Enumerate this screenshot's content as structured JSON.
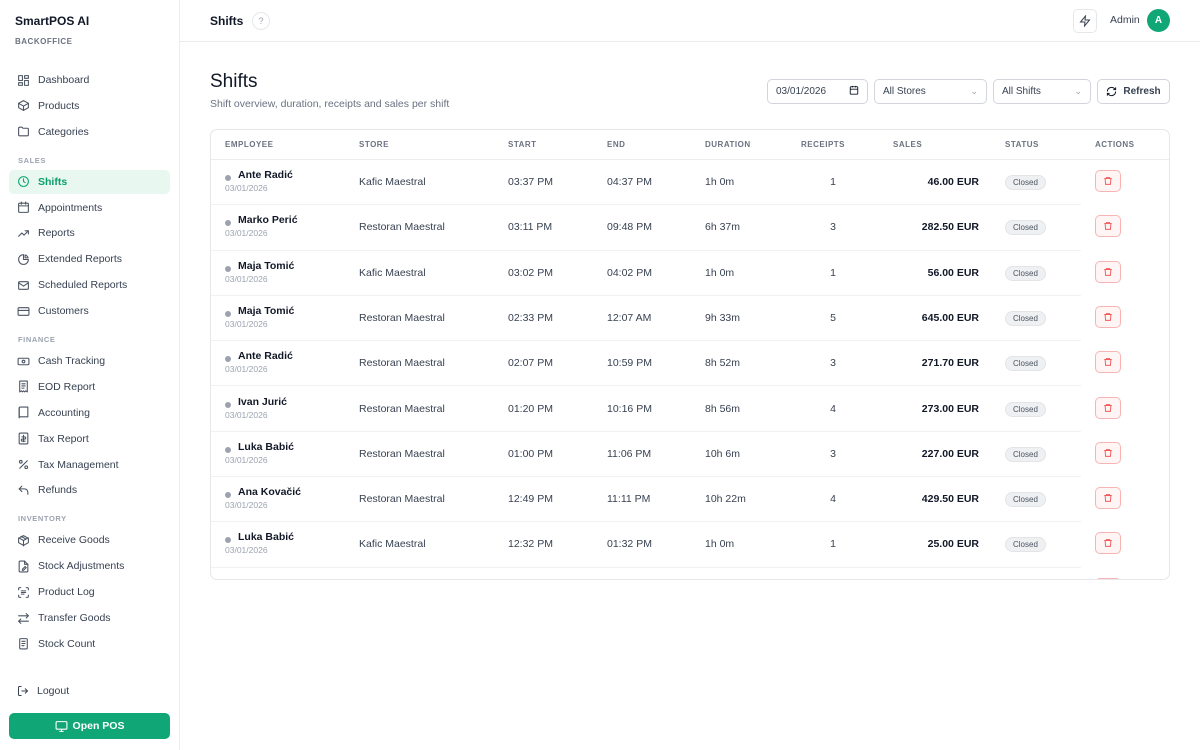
{
  "brand": {
    "name": "SmartPOS AI",
    "sub": "BACKOFFICE"
  },
  "sidebar": {
    "items": [
      {
        "label": "Dashboard",
        "icon": "dashboard-icon"
      },
      {
        "label": "Products",
        "icon": "box-icon"
      },
      {
        "label": "Categories",
        "icon": "folder-icon"
      }
    ],
    "sales_label": "SALES",
    "sales_items": [
      {
        "label": "Shifts",
        "icon": "clock-icon",
        "active": true
      },
      {
        "label": "Appointments",
        "icon": "calendar-icon"
      },
      {
        "label": "Reports",
        "icon": "trend-icon"
      },
      {
        "label": "Extended Reports",
        "icon": "pie-icon"
      },
      {
        "label": "Scheduled Reports",
        "icon": "mail-icon"
      },
      {
        "label": "Customers",
        "icon": "card-icon"
      }
    ],
    "finance_label": "FINANCE",
    "finance_items": [
      {
        "label": "Cash Tracking",
        "icon": "cash-icon"
      },
      {
        "label": "EOD Report",
        "icon": "receipt-icon"
      },
      {
        "label": "Accounting",
        "icon": "book-icon"
      },
      {
        "label": "Tax Report",
        "icon": "tax-doc-icon"
      },
      {
        "label": "Tax Management",
        "icon": "percent-icon"
      },
      {
        "label": "Refunds",
        "icon": "undo-icon"
      }
    ],
    "inventory_label": "INVENTORY",
    "inventory_items": [
      {
        "label": "Receive Goods",
        "icon": "package-icon"
      },
      {
        "label": "Stock Adjustments",
        "icon": "file-edit-icon"
      },
      {
        "label": "Product Log",
        "icon": "scan-icon"
      },
      {
        "label": "Transfer Goods",
        "icon": "swap-icon"
      },
      {
        "label": "Stock Count",
        "icon": "clipboard-icon"
      }
    ],
    "logout": "Logout",
    "open_pos": "Open POS"
  },
  "topbar": {
    "title": "Shifts",
    "help": "?",
    "user": "Admin",
    "avatar": "A"
  },
  "main": {
    "title": "Shifts",
    "subtitle": "Shift overview, duration, receipts and sales per shift",
    "date_value": "03/01/2026",
    "store_filter": "All Stores",
    "shift_filter": "All Shifts",
    "refresh": "Refresh"
  },
  "table": {
    "headers": [
      "EMPLOYEE",
      "STORE",
      "START",
      "END",
      "DURATION",
      "RECEIPTS",
      "SALES",
      "STATUS",
      "ACTIONS"
    ],
    "rows": [
      {
        "employee": "Ante Radić",
        "date": "03/01/2026",
        "store": "Kafic Maestral",
        "start": "03:37 PM",
        "end": "04:37 PM",
        "duration": "1h 0m",
        "receipts": "1",
        "sales": "46.00 EUR",
        "status": "Closed"
      },
      {
        "employee": "Marko Perić",
        "date": "03/01/2026",
        "store": "Restoran Maestral",
        "start": "03:11 PM",
        "end": "09:48 PM",
        "duration": "6h 37m",
        "receipts": "3",
        "sales": "282.50 EUR",
        "status": "Closed"
      },
      {
        "employee": "Maja Tomić",
        "date": "03/01/2026",
        "store": "Kafic Maestral",
        "start": "03:02 PM",
        "end": "04:02 PM",
        "duration": "1h 0m",
        "receipts": "1",
        "sales": "56.00 EUR",
        "status": "Closed"
      },
      {
        "employee": "Maja Tomić",
        "date": "03/01/2026",
        "store": "Restoran Maestral",
        "start": "02:33 PM",
        "end": "12:07 AM",
        "duration": "9h 33m",
        "receipts": "5",
        "sales": "645.00 EUR",
        "status": "Closed"
      },
      {
        "employee": "Ante Radić",
        "date": "03/01/2026",
        "store": "Restoran Maestral",
        "start": "02:07 PM",
        "end": "10:59 PM",
        "duration": "8h 52m",
        "receipts": "3",
        "sales": "271.70 EUR",
        "status": "Closed"
      },
      {
        "employee": "Ivan Jurić",
        "date": "03/01/2026",
        "store": "Restoran Maestral",
        "start": "01:20 PM",
        "end": "10:16 PM",
        "duration": "8h 56m",
        "receipts": "4",
        "sales": "273.00 EUR",
        "status": "Closed"
      },
      {
        "employee": "Luka Babić",
        "date": "03/01/2026",
        "store": "Restoran Maestral",
        "start": "01:00 PM",
        "end": "11:06 PM",
        "duration": "10h 6m",
        "receipts": "3",
        "sales": "227.00 EUR",
        "status": "Closed"
      },
      {
        "employee": "Ana Kovačić",
        "date": "03/01/2026",
        "store": "Restoran Maestral",
        "start": "12:49 PM",
        "end": "11:11 PM",
        "duration": "10h 22m",
        "receipts": "4",
        "sales": "429.50 EUR",
        "status": "Closed"
      },
      {
        "employee": "Luka Babić",
        "date": "03/01/2026",
        "store": "Kafic Maestral",
        "start": "12:32 PM",
        "end": "01:32 PM",
        "duration": "1h 0m",
        "receipts": "1",
        "sales": "25.00 EUR",
        "status": "Closed"
      }
    ]
  },
  "colors": {
    "accent": "#10a675",
    "active_bg": "#e8f7f0",
    "danger": "#ef4444"
  }
}
